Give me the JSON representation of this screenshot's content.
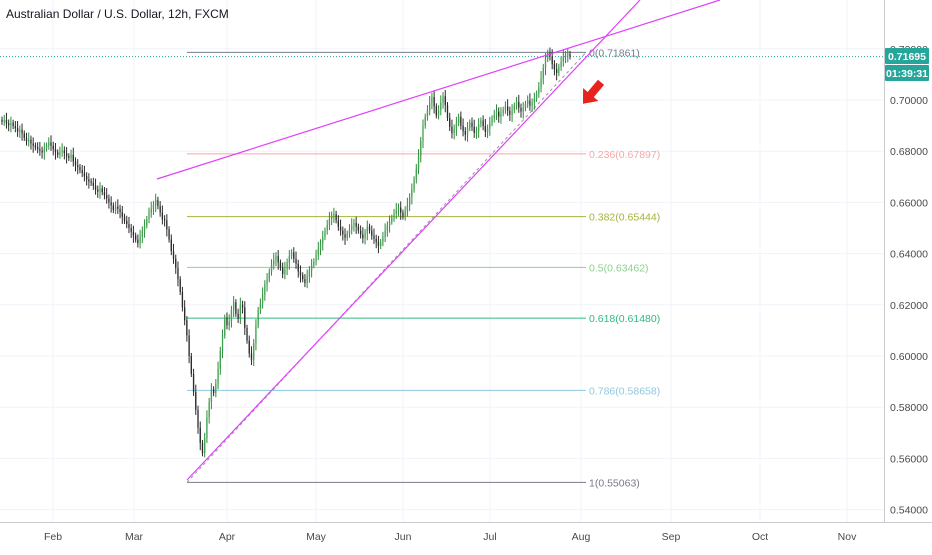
{
  "chart_data": {
    "type": "candlestick",
    "title": "Australian Dollar / U.S. Dollar, 12h, FXCM",
    "x_ticks": [
      "Feb",
      "Mar",
      "Apr",
      "May",
      "Jun",
      "Jul",
      "Aug",
      "Sep",
      "Oct",
      "Nov"
    ],
    "y_ticks": [
      "0.54000",
      "0.56000",
      "0.58000",
      "0.60000",
      "0.62000",
      "0.64000",
      "0.66000",
      "0.68000",
      "0.70000",
      "0.72000"
    ],
    "ylim": [
      0.535,
      0.7345
    ],
    "grid": true,
    "last_price": "0.71695",
    "countdown": "01:39:31",
    "fib_levels": [
      {
        "label": "0(0.71861)",
        "value": 0.71861,
        "color": "#787b86"
      },
      {
        "label": "0.236(0.67897)",
        "value": 0.67897,
        "color": "#f7a6a6"
      },
      {
        "label": "0.382(0.65444)",
        "value": 0.65444,
        "color": "#a8b23a"
      },
      {
        "label": "0.5(0.63462)",
        "value": 0.63462,
        "color": "#8fd18f"
      },
      {
        "label": "0.618(0.61480)",
        "value": 0.6148,
        "color": "#2ebc7c"
      },
      {
        "label": "0.786(0.58658)",
        "value": 0.58658,
        "color": "#8fc8e0"
      },
      {
        "label": "1(0.55063)",
        "value": 0.55063,
        "color": "#787b86"
      }
    ],
    "closes": [
      0.6915,
      0.6922,
      0.6908,
      0.6902,
      0.6911,
      0.6898,
      0.689,
      0.6876,
      0.6884,
      0.6869,
      0.6852,
      0.6838,
      0.6845,
      0.683,
      0.6822,
      0.6815,
      0.6808,
      0.6802,
      0.6795,
      0.681,
      0.6822,
      0.6834,
      0.6821,
      0.6808,
      0.6795,
      0.6786,
      0.6798,
      0.6803,
      0.6792,
      0.678,
      0.6774,
      0.6786,
      0.676,
      0.6745,
      0.6738,
      0.6726,
      0.6715,
      0.6702,
      0.669,
      0.6682,
      0.6676,
      0.6665,
      0.665,
      0.6642,
      0.6655,
      0.664,
      0.6628,
      0.6615,
      0.66,
      0.6588,
      0.657,
      0.6584,
      0.6575,
      0.6562,
      0.6544,
      0.6528,
      0.6515,
      0.65,
      0.6485,
      0.647,
      0.6455,
      0.644,
      0.6465,
      0.649,
      0.651,
      0.6535,
      0.656,
      0.6575,
      0.659,
      0.661,
      0.6585,
      0.656,
      0.6534,
      0.653,
      0.6495,
      0.6455,
      0.641,
      0.638,
      0.6345,
      0.63,
      0.625,
      0.619,
      0.614,
      0.608,
      0.6,
      0.593,
      0.586,
      0.579,
      0.572,
      0.566,
      0.562,
      0.568,
      0.576,
      0.582,
      0.587,
      0.5855,
      0.589,
      0.595,
      0.602,
      0.608,
      0.615,
      0.612,
      0.6135,
      0.618,
      0.621,
      0.6165,
      0.6145,
      0.62,
      0.619,
      0.611,
      0.606,
      0.601,
      0.5985,
      0.605,
      0.612,
      0.618,
      0.6205,
      0.624,
      0.628,
      0.63,
      0.633,
      0.6358,
      0.6375,
      0.639,
      0.6365,
      0.6345,
      0.632,
      0.634,
      0.6365,
      0.639,
      0.6405,
      0.638,
      0.636,
      0.633,
      0.6315,
      0.63,
      0.6285,
      0.631,
      0.6335,
      0.6355,
      0.637,
      0.6395,
      0.6418,
      0.644,
      0.6465,
      0.649,
      0.6512,
      0.6535,
      0.6548,
      0.6555,
      0.653,
      0.6505,
      0.649,
      0.6475,
      0.6462,
      0.6478,
      0.6495,
      0.651,
      0.652,
      0.6505,
      0.649,
      0.6475,
      0.646,
      0.648,
      0.6505,
      0.649,
      0.647,
      0.6458,
      0.6445,
      0.643,
      0.6445,
      0.6465,
      0.649,
      0.651,
      0.6525,
      0.654,
      0.6555,
      0.657,
      0.658,
      0.656,
      0.6545,
      0.6565,
      0.659,
      0.662,
      0.665,
      0.669,
      0.673,
      0.678,
      0.684,
      0.69,
      0.6935,
      0.696,
      0.6988,
      0.7012,
      0.6975,
      0.694,
      0.696,
      0.699,
      0.7015,
      0.698,
      0.693,
      0.6895,
      0.687,
      0.6888,
      0.691,
      0.6935,
      0.69,
      0.6878,
      0.6865,
      0.689,
      0.6912,
      0.6895,
      0.6872,
      0.688,
      0.6905,
      0.692,
      0.6898,
      0.6875,
      0.6888,
      0.691,
      0.6928,
      0.6942,
      0.6955,
      0.6935,
      0.6948,
      0.6962,
      0.6975,
      0.6958,
      0.6942,
      0.696,
      0.6978,
      0.6992,
      0.697,
      0.6955,
      0.6968,
      0.6985,
      0.6998,
      0.6978,
      0.699,
      0.7005,
      0.7025,
      0.705,
      0.7085,
      0.7125,
      0.716,
      0.7185,
      0.717,
      0.714,
      0.712,
      0.7105,
      0.713,
      0.715,
      0.7168,
      0.7175,
      0.718,
      0.717
    ]
  }
}
